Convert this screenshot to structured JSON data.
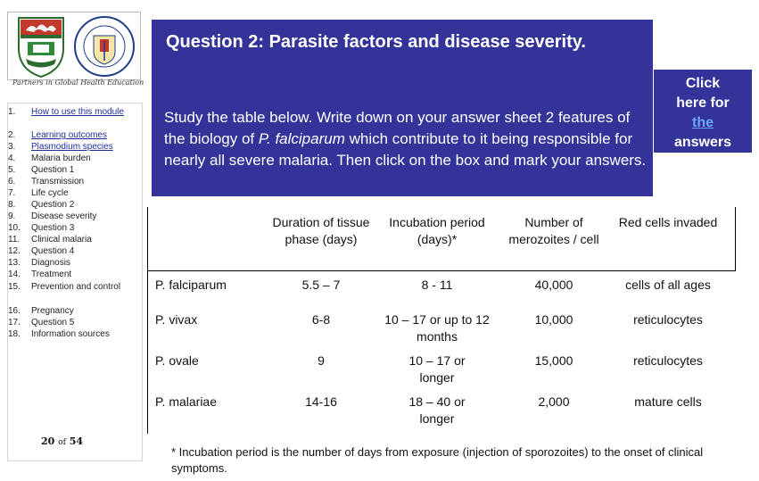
{
  "partners_text": "Partners in Global Health Education",
  "logo_text": "COLLEGE OF MEDICINE UNIVERSITY OF IBADAN",
  "nav_items": [
    {
      "num": "1.",
      "label": "How to use this module",
      "link": true
    },
    {
      "num": "2.",
      "label": "Learning outcomes",
      "link": true
    },
    {
      "num": "3.",
      "label": "Plasmodium species",
      "link": true
    },
    {
      "num": "4.",
      "label": "Malaria burden",
      "link": false
    },
    {
      "num": "5.",
      "label": "Question 1",
      "link": false
    },
    {
      "num": "6.",
      "label": "Transmission",
      "link": false
    },
    {
      "num": "7.",
      "label": "Life cycle",
      "link": false
    },
    {
      "num": "8.",
      "label": "Question 2",
      "link": false
    },
    {
      "num": "9.",
      "label": "Disease severity",
      "link": false
    },
    {
      "num": "10.",
      "label": "Question 3",
      "link": false
    },
    {
      "num": "11.",
      "label": "Clinical malaria",
      "link": false
    },
    {
      "num": "12.",
      "label": "Question 4",
      "link": false
    },
    {
      "num": "13.",
      "label": "Diagnosis",
      "link": false
    },
    {
      "num": "14.",
      "label": "Treatment",
      "link": false
    },
    {
      "num": "15.",
      "label": "Prevention and control",
      "link": false
    },
    {
      "num": "16.",
      "label": "Pregnancy",
      "link": false
    },
    {
      "num": "17.",
      "label": "Question 5",
      "link": false
    },
    {
      "num": "18.",
      "label": "Information sources",
      "link": false
    }
  ],
  "page": {
    "current": "20",
    "of_label": "of",
    "total": "54"
  },
  "question": {
    "title": "Question 2: Parasite factors and disease severity.",
    "body_before": "Study the table below. Write down on your answer sheet 2 features of the biology of ",
    "body_species": "P. falciparum",
    "body_after": " which contribute to it being responsible for nearly all severe malaria. Then click on the box and mark your answers."
  },
  "answers_button": {
    "line1": "Click",
    "line2": "here for",
    "link": "the",
    "line4": "answers"
  },
  "table": {
    "headers": [
      "Duration of tissue phase (days)",
      "Incubation period (days)*",
      "Number of merozoites / cell",
      "Red cells invaded"
    ],
    "rows": [
      {
        "species": "P. falciparum",
        "cells": [
          "5.5 – 7",
          "8 - 11",
          "40,000",
          "cells of all ages"
        ]
      },
      {
        "species": "P. vivax",
        "cells": [
          "6-8",
          "10 – 17 or up to 12 months",
          "10,000",
          "reticulocytes"
        ]
      },
      {
        "species": "P. ovale",
        "cells": [
          "9",
          "10 – 17 or longer",
          "15,000",
          "reticulocytes"
        ]
      },
      {
        "species": "P. malariae",
        "cells": [
          "14-16",
          "18 – 40 or longer",
          "2,000",
          "mature cells"
        ]
      }
    ]
  },
  "footnote": "* Incubation period is the number of days from exposure (injection of sporozoites) to the onset of clinical symptoms."
}
